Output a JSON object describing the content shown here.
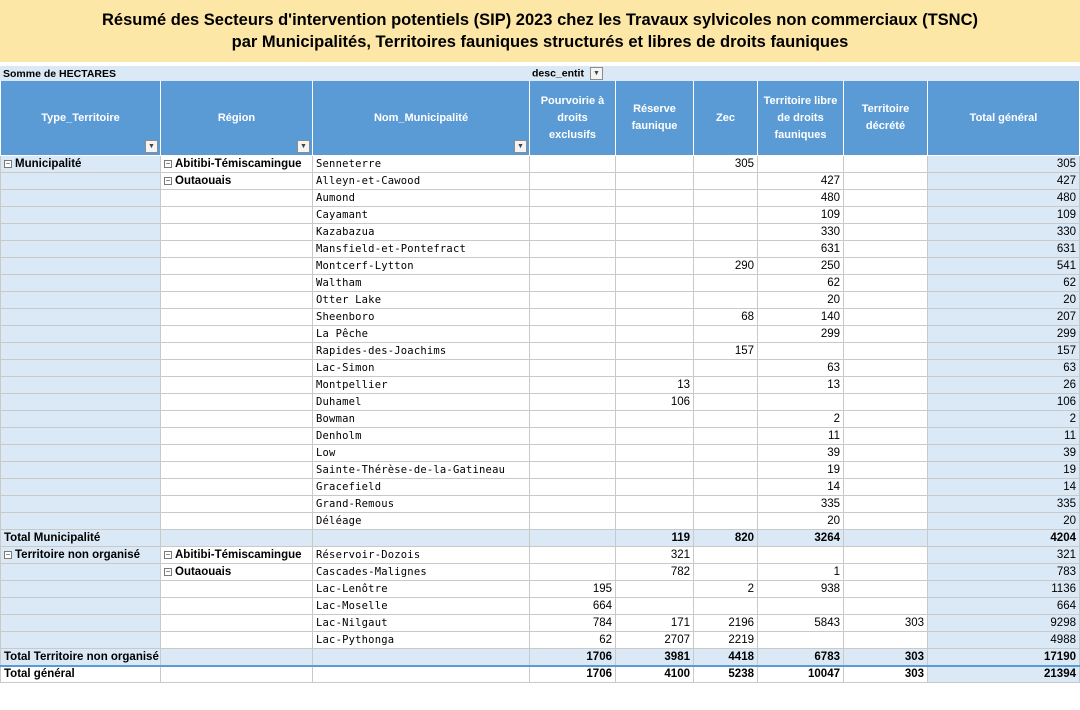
{
  "title": {
    "line1": "Résumé des Secteurs d'intervention potentiels (SIP) 2023 chez les Travaux sylvicoles non commerciaux (TSNC)",
    "line2": "par Municipalités, Territoires fauniques structurés et libres de droits fauniques"
  },
  "pivot": {
    "value_field": "Somme de HECTARES",
    "column_field": "desc_entit",
    "headers": {
      "type": "Type_Territoire",
      "region": "Région",
      "municipalite": "Nom_Municipalité",
      "pourvoirie": "Pourvoirie à droits exclusifs",
      "reserve": "Réserve faunique",
      "zec": "Zec",
      "libre": "Territoire libre de droits fauniques",
      "decrete": "Territoire décrété",
      "total": "Total général"
    },
    "rows": [
      {
        "type": "Municipalité",
        "region": "Abitibi-Témiscamingue",
        "mun": "Senneterre",
        "c1": "",
        "c2": "",
        "c3": "305",
        "c4": "",
        "c5": "",
        "t": "305"
      },
      {
        "type": "",
        "region": "Outaouais",
        "mun": "Alleyn-et-Cawood",
        "c1": "",
        "c2": "",
        "c3": "",
        "c4": "427",
        "c5": "",
        "t": "427"
      },
      {
        "type": "",
        "region": "",
        "mun": "Aumond",
        "c1": "",
        "c2": "",
        "c3": "",
        "c4": "480",
        "c5": "",
        "t": "480"
      },
      {
        "type": "",
        "region": "",
        "mun": "Cayamant",
        "c1": "",
        "c2": "",
        "c3": "",
        "c4": "109",
        "c5": "",
        "t": "109"
      },
      {
        "type": "",
        "region": "",
        "mun": "Kazabazua",
        "c1": "",
        "c2": "",
        "c3": "",
        "c4": "330",
        "c5": "",
        "t": "330"
      },
      {
        "type": "",
        "region": "",
        "mun": "Mansfield-et-Pontefract",
        "c1": "",
        "c2": "",
        "c3": "",
        "c4": "631",
        "c5": "",
        "t": "631"
      },
      {
        "type": "",
        "region": "",
        "mun": "Montcerf-Lytton",
        "c1": "",
        "c2": "",
        "c3": "290",
        "c4": "250",
        "c5": "",
        "t": "541"
      },
      {
        "type": "",
        "region": "",
        "mun": "Waltham",
        "c1": "",
        "c2": "",
        "c3": "",
        "c4": "62",
        "c5": "",
        "t": "62"
      },
      {
        "type": "",
        "region": "",
        "mun": "Otter Lake",
        "c1": "",
        "c2": "",
        "c3": "",
        "c4": "20",
        "c5": "",
        "t": "20"
      },
      {
        "type": "",
        "region": "",
        "mun": "Sheenboro",
        "c1": "",
        "c2": "",
        "c3": "68",
        "c4": "140",
        "c5": "",
        "t": "207"
      },
      {
        "type": "",
        "region": "",
        "mun": "La Pêche",
        "c1": "",
        "c2": "",
        "c3": "",
        "c4": "299",
        "c5": "",
        "t": "299"
      },
      {
        "type": "",
        "region": "",
        "mun": "Rapides-des-Joachims",
        "c1": "",
        "c2": "",
        "c3": "157",
        "c4": "",
        "c5": "",
        "t": "157"
      },
      {
        "type": "",
        "region": "",
        "mun": "Lac-Simon",
        "c1": "",
        "c2": "",
        "c3": "",
        "c4": "63",
        "c5": "",
        "t": "63"
      },
      {
        "type": "",
        "region": "",
        "mun": "Montpellier",
        "c1": "",
        "c2": "13",
        "c3": "",
        "c4": "13",
        "c5": "",
        "t": "26"
      },
      {
        "type": "",
        "region": "",
        "mun": "Duhamel",
        "c1": "",
        "c2": "106",
        "c3": "",
        "c4": "",
        "c5": "",
        "t": "106"
      },
      {
        "type": "",
        "region": "",
        "mun": "Bowman",
        "c1": "",
        "c2": "",
        "c3": "",
        "c4": "2",
        "c5": "",
        "t": "2"
      },
      {
        "type": "",
        "region": "",
        "mun": "Denholm",
        "c1": "",
        "c2": "",
        "c3": "",
        "c4": "11",
        "c5": "",
        "t": "11"
      },
      {
        "type": "",
        "region": "",
        "mun": "Low",
        "c1": "",
        "c2": "",
        "c3": "",
        "c4": "39",
        "c5": "",
        "t": "39"
      },
      {
        "type": "",
        "region": "",
        "mun": "Sainte-Thérèse-de-la-Gatineau",
        "c1": "",
        "c2": "",
        "c3": "",
        "c4": "19",
        "c5": "",
        "t": "19"
      },
      {
        "type": "",
        "region": "",
        "mun": "Gracefield",
        "c1": "",
        "c2": "",
        "c3": "",
        "c4": "14",
        "c5": "",
        "t": "14"
      },
      {
        "type": "",
        "region": "",
        "mun": "Grand-Remous",
        "c1": "",
        "c2": "",
        "c3": "",
        "c4": "335",
        "c5": "",
        "t": "335"
      },
      {
        "type": "",
        "region": "",
        "mun": "Déléage",
        "c1": "",
        "c2": "",
        "c3": "",
        "c4": "20",
        "c5": "",
        "t": "20"
      }
    ],
    "total_municipalite": {
      "label": "Total Municipalité",
      "c1": "",
      "c2": "119",
      "c3": "820",
      "c4": "3264",
      "c5": "",
      "t": "4204"
    },
    "rows2": [
      {
        "type": "Territoire non organisé",
        "region": "Abitibi-Témiscamingue",
        "mun": "Réservoir-Dozois",
        "c1": "",
        "c2": "321",
        "c3": "",
        "c4": "",
        "c5": "",
        "t": "321"
      },
      {
        "type": "",
        "region": "Outaouais",
        "mun": "Cascades-Malignes",
        "c1": "",
        "c2": "782",
        "c3": "",
        "c4": "1",
        "c5": "",
        "t": "783"
      },
      {
        "type": "",
        "region": "",
        "mun": "Lac-Lenôtre",
        "c1": "195",
        "c2": "",
        "c3": "2",
        "c4": "938",
        "c5": "",
        "t": "1136"
      },
      {
        "type": "",
        "region": "",
        "mun": "Lac-Moselle",
        "c1": "664",
        "c2": "",
        "c3": "",
        "c4": "",
        "c5": "",
        "t": "664"
      },
      {
        "type": "",
        "region": "",
        "mun": "Lac-Nilgaut",
        "c1": "784",
        "c2": "171",
        "c3": "2196",
        "c4": "5843",
        "c5": "303",
        "t": "9298"
      },
      {
        "type": "",
        "region": "",
        "mun": "Lac-Pythonga",
        "c1": "62",
        "c2": "2707",
        "c3": "2219",
        "c4": "",
        "c5": "",
        "t": "4988"
      }
    ],
    "total_tno": {
      "label": "Total Territoire non organisé",
      "c1": "1706",
      "c2": "3981",
      "c3": "4418",
      "c4": "6783",
      "c5": "303",
      "t": "17190"
    },
    "grand_total": {
      "label": "Total général",
      "c1": "1706",
      "c2": "4100",
      "c3": "5238",
      "c4": "10047",
      "c5": "303",
      "t": "21394"
    }
  }
}
